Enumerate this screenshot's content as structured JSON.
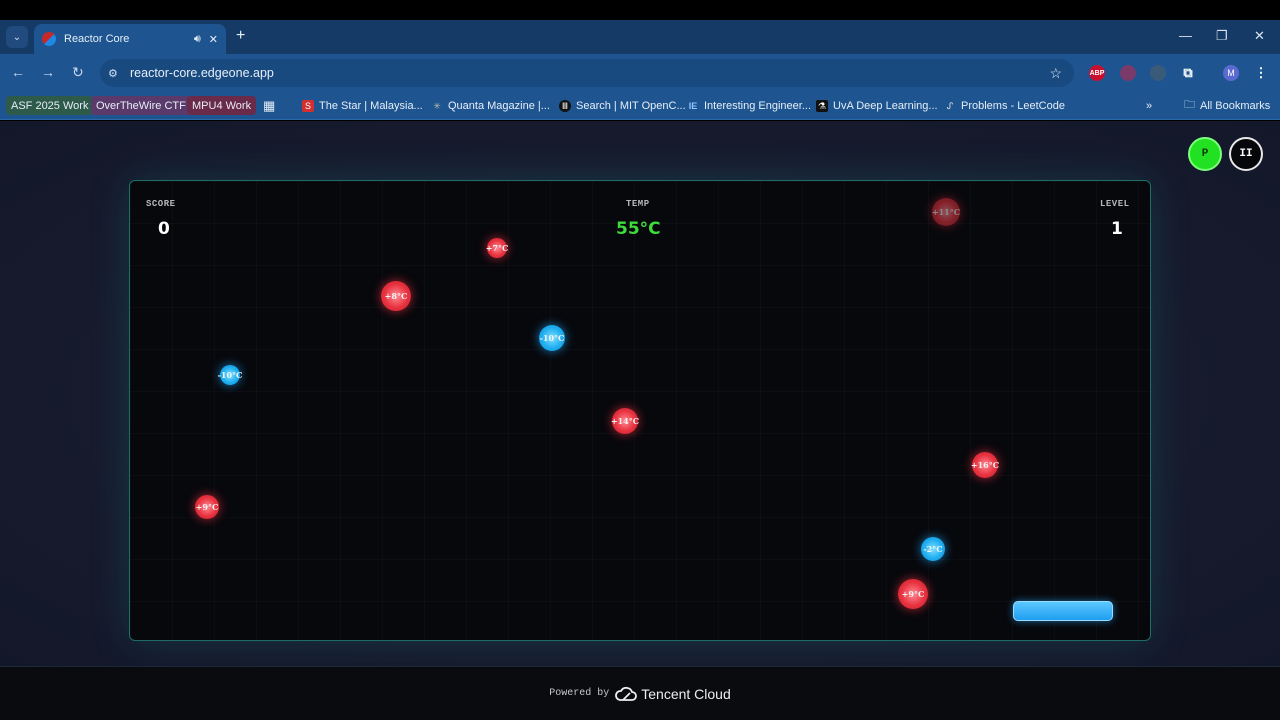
{
  "browser": {
    "tab_title": "Reactor Core",
    "url": "reactor-core.edgeone.app",
    "profile_initial": "M",
    "extensions": [
      "ABP"
    ],
    "bookmarks": [
      {
        "label": "ASF 2025 Work",
        "color": "#2e5a4a"
      },
      {
        "label": "OverTheWire CTF",
        "color": "#5a3a6a"
      },
      {
        "label": "MPU4 Work",
        "color": "#6a2a4a"
      },
      {
        "label": "The Star | Malaysia..."
      },
      {
        "label": "Quanta Magazine |..."
      },
      {
        "label": "Search | MIT OpenC..."
      },
      {
        "label": "Interesting Engineer..."
      },
      {
        "label": "UvA Deep Learning..."
      },
      {
        "label": "Problems - LeetCode"
      }
    ],
    "all_bookmarks": "All Bookmarks"
  },
  "game": {
    "score_label": "SCORE",
    "score": "0",
    "temp_label": "TEMP",
    "temp": "55°C",
    "temp_color": "#3ddc3d",
    "level_label": "LEVEL",
    "level": "1",
    "p_button": "P",
    "pause_button": "II",
    "orbs": [
      {
        "label": "+7°C",
        "type": "hot"
      },
      {
        "label": "+8°C",
        "type": "hot"
      },
      {
        "label": "-10°C",
        "type": "cold"
      },
      {
        "label": "-10°C",
        "type": "cold"
      },
      {
        "label": "+14°C",
        "type": "hot"
      },
      {
        "label": "+11°C",
        "type": "hot"
      },
      {
        "label": "+16°C",
        "type": "hot"
      },
      {
        "label": "+9°C",
        "type": "hot"
      },
      {
        "label": "-2°C",
        "type": "cold"
      },
      {
        "label": "+9°C",
        "type": "hot"
      }
    ]
  },
  "footer": {
    "powered_by": "Powered by",
    "brand": "Tencent Cloud"
  }
}
